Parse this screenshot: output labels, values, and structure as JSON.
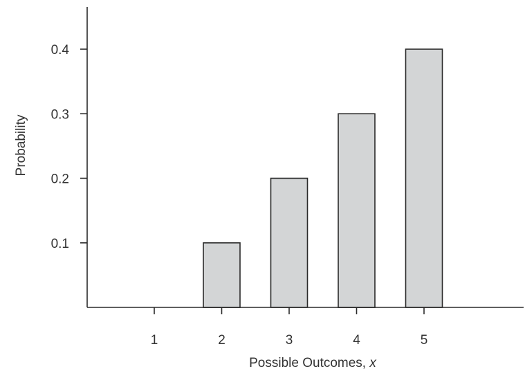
{
  "chart_data": {
    "type": "bar",
    "categories": [
      "1",
      "2",
      "3",
      "4",
      "5"
    ],
    "values": [
      0,
      0.1,
      0.2,
      0.3,
      0.4
    ],
    "title": "",
    "xlabel": "Possible Outcomes,",
    "xlabel_variable": "x",
    "ylabel": "Probability",
    "ylim": [
      0,
      0.4
    ],
    "yticks": [
      "0.1",
      "0.2",
      "0.3",
      "0.4"
    ],
    "ytick_values": [
      0.1,
      0.2,
      0.3,
      0.4
    ],
    "grid": false,
    "legend": "none",
    "bar_color": "#d3d5d6",
    "edge_color": "#2a2a2a"
  }
}
